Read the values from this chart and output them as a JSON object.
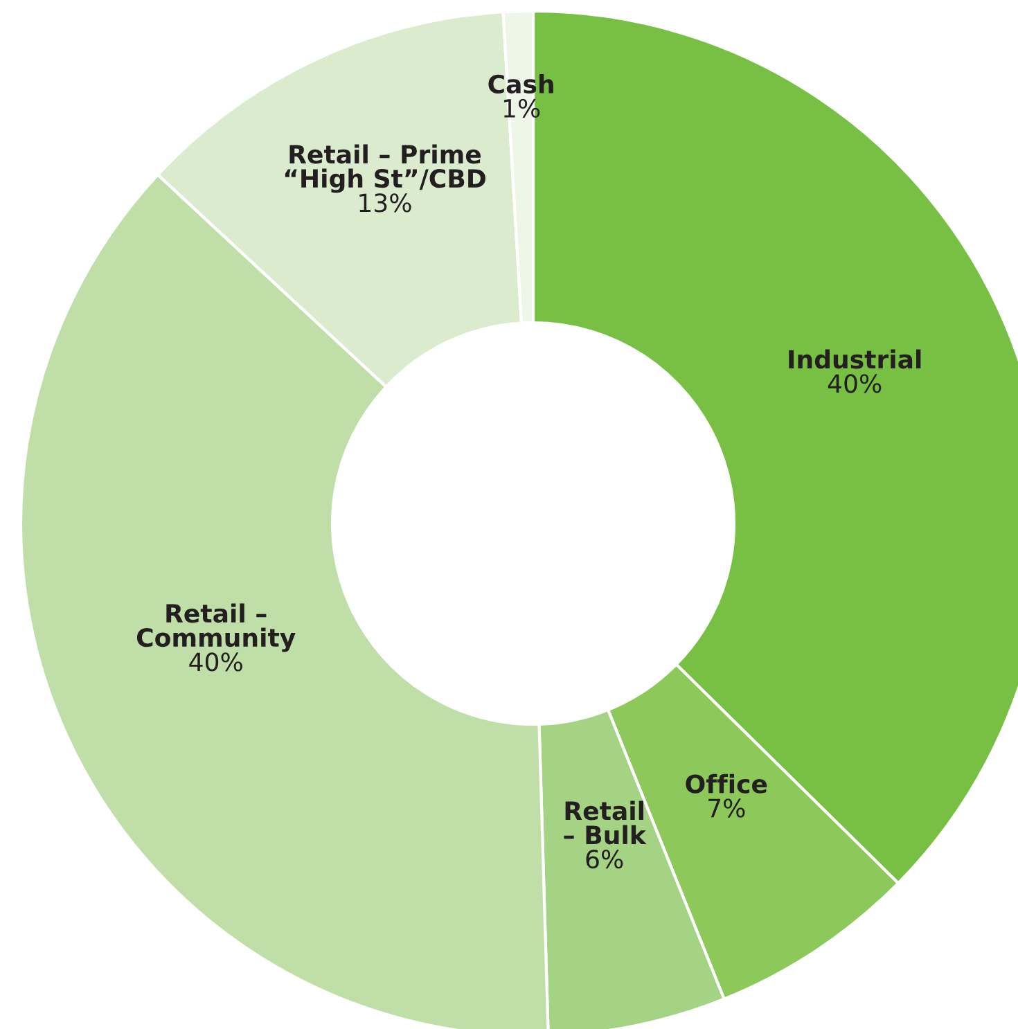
{
  "chart_data": {
    "type": "donut",
    "categories": [
      "Industrial",
      "Office",
      "Retail\n– Bulk",
      "Retail –\nCommunity",
      "Retail – Prime\n“High St”/CBD",
      "Cash"
    ],
    "values": [
      40,
      7,
      6,
      40,
      13,
      1
    ],
    "value_labels": [
      "40%",
      "7%",
      "6%",
      "40%",
      "13%",
      "1%"
    ],
    "colors": [
      "#78c043",
      "#8dc85a",
      "#a4d384",
      "#c0dfa8",
      "#dbecce",
      "#eef6e8"
    ],
    "legend": false
  }
}
